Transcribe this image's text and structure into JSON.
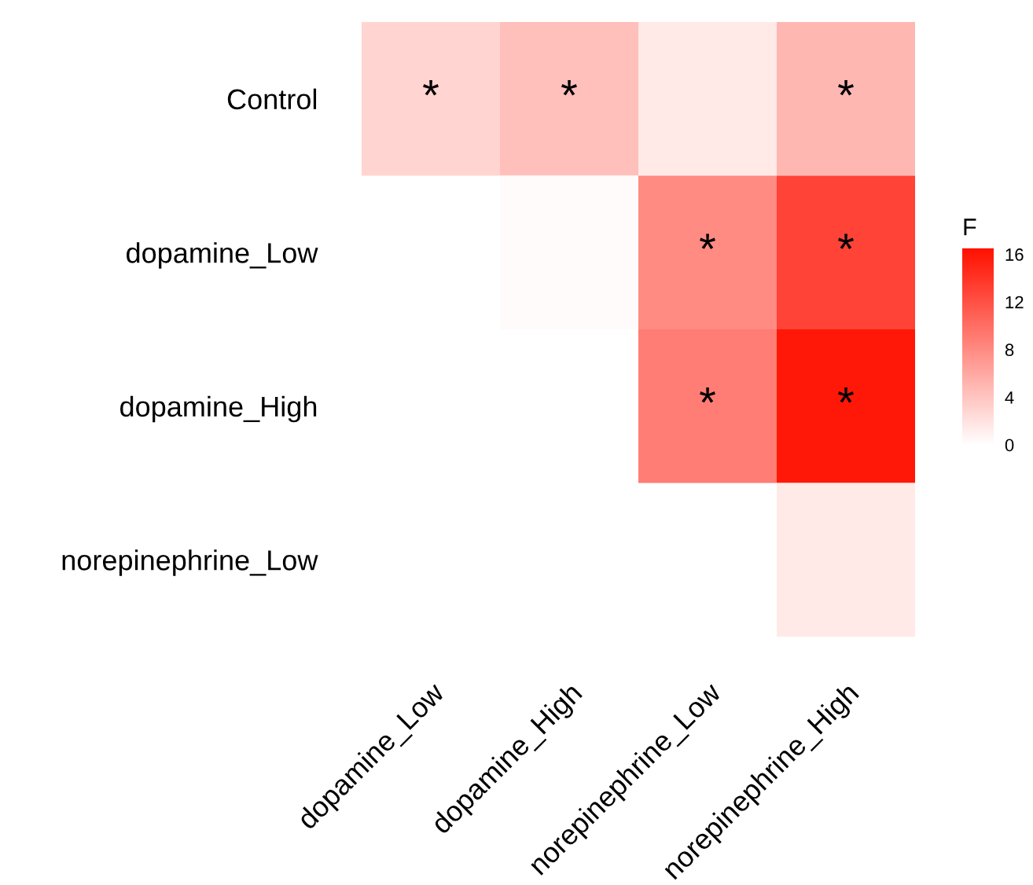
{
  "chart_data": {
    "type": "heatmap",
    "clabel": "F",
    "categories": [
      "dopamine_Low",
      "dopamine_High",
      "norepinephrine_Low",
      "norepinephrine_High"
    ],
    "y_categories": [
      "Control",
      "dopamine_Low",
      "dopamine_High",
      "norepinephrine_Low"
    ],
    "cells": [
      [
        3,
        4.5,
        1.5,
        5
      ],
      [
        null,
        0.3,
        8,
        13
      ],
      [
        null,
        null,
        9,
        16
      ],
      [
        null,
        null,
        null,
        1.5
      ]
    ],
    "cell_labels": [
      [
        "*",
        "*",
        null,
        "*"
      ],
      [
        null,
        null,
        "*",
        "*"
      ],
      [
        null,
        null,
        "*",
        "*"
      ],
      [
        null,
        null,
        null,
        null
      ]
    ],
    "clim": [
      0,
      16.5
    ],
    "cticks": [
      0,
      4,
      8,
      12,
      16
    ]
  }
}
